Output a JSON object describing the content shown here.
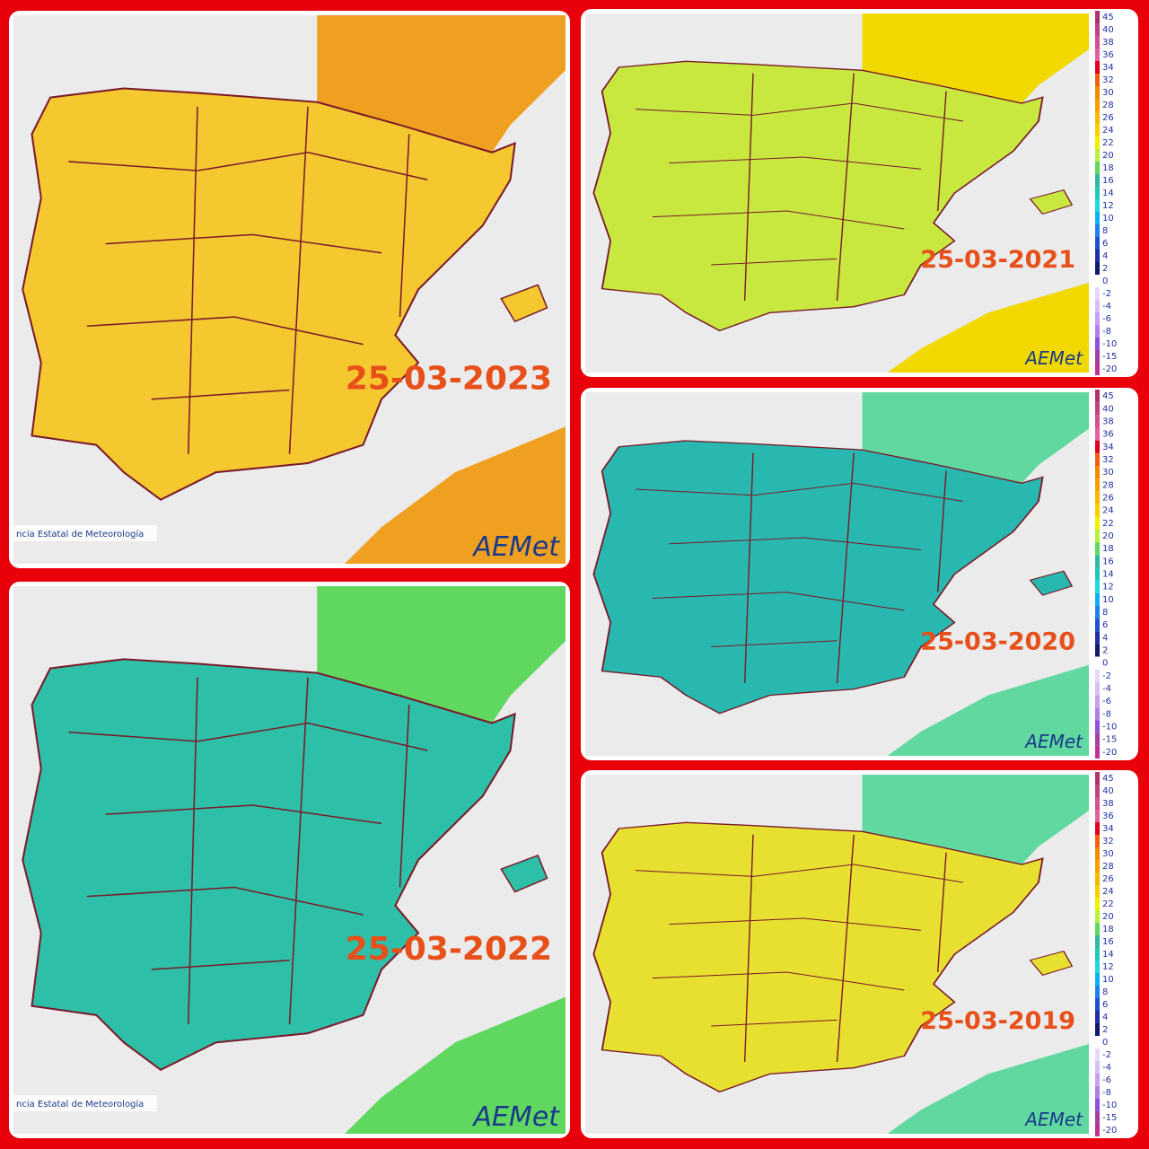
{
  "panels": [
    {
      "date": "25-03-2023",
      "land_color": "#f5c830",
      "sea_land_color": "#f0a020",
      "logo": "AEMet",
      "credit": "ncia Estatal de Meteorología",
      "legend": false
    },
    {
      "date": "25-03-2022",
      "land_color": "#2ebfa8",
      "sea_land_color": "#60d860",
      "logo": "AEMet",
      "credit": "ncia Estatal de Meteorología",
      "legend": false
    },
    {
      "date": "25-03-2021",
      "land_color": "#c8e840",
      "sea_land_color": "#f0d800",
      "logo": "AEMet",
      "legend": true
    },
    {
      "date": "25-03-2020",
      "land_color": "#28b8b0",
      "sea_land_color": "#60d8a0",
      "logo": "AEMet",
      "legend": true
    },
    {
      "date": "25-03-2019",
      "land_color": "#e8e030",
      "sea_land_color": "#60d8a0",
      "logo": "AEMet",
      "legend": true
    }
  ],
  "legend": {
    "ticks": [
      45,
      40,
      38,
      36,
      34,
      32,
      30,
      28,
      26,
      24,
      22,
      20,
      18,
      16,
      14,
      12,
      10,
      8,
      6,
      4,
      2,
      0,
      -2,
      -4,
      -6,
      -8,
      -10,
      -15,
      -20
    ],
    "colors": [
      "#b03070",
      "#c04080",
      "#d05090",
      "#e060a0",
      "#e00020",
      "#f06010",
      "#f08a00",
      "#f5a000",
      "#f8b800",
      "#f8d000",
      "#f0f000",
      "#b8f040",
      "#60d860",
      "#30b8a0",
      "#20c8b8",
      "#20d8e0",
      "#10b0f0",
      "#2080e8",
      "#2050d0",
      "#2030a0",
      "#101870",
      "#ffffff",
      "#e8d8f8",
      "#d8c0f0",
      "#c8a0f0",
      "#b080e8",
      "#9050d8",
      "#a040a0",
      "#c03090"
    ]
  }
}
